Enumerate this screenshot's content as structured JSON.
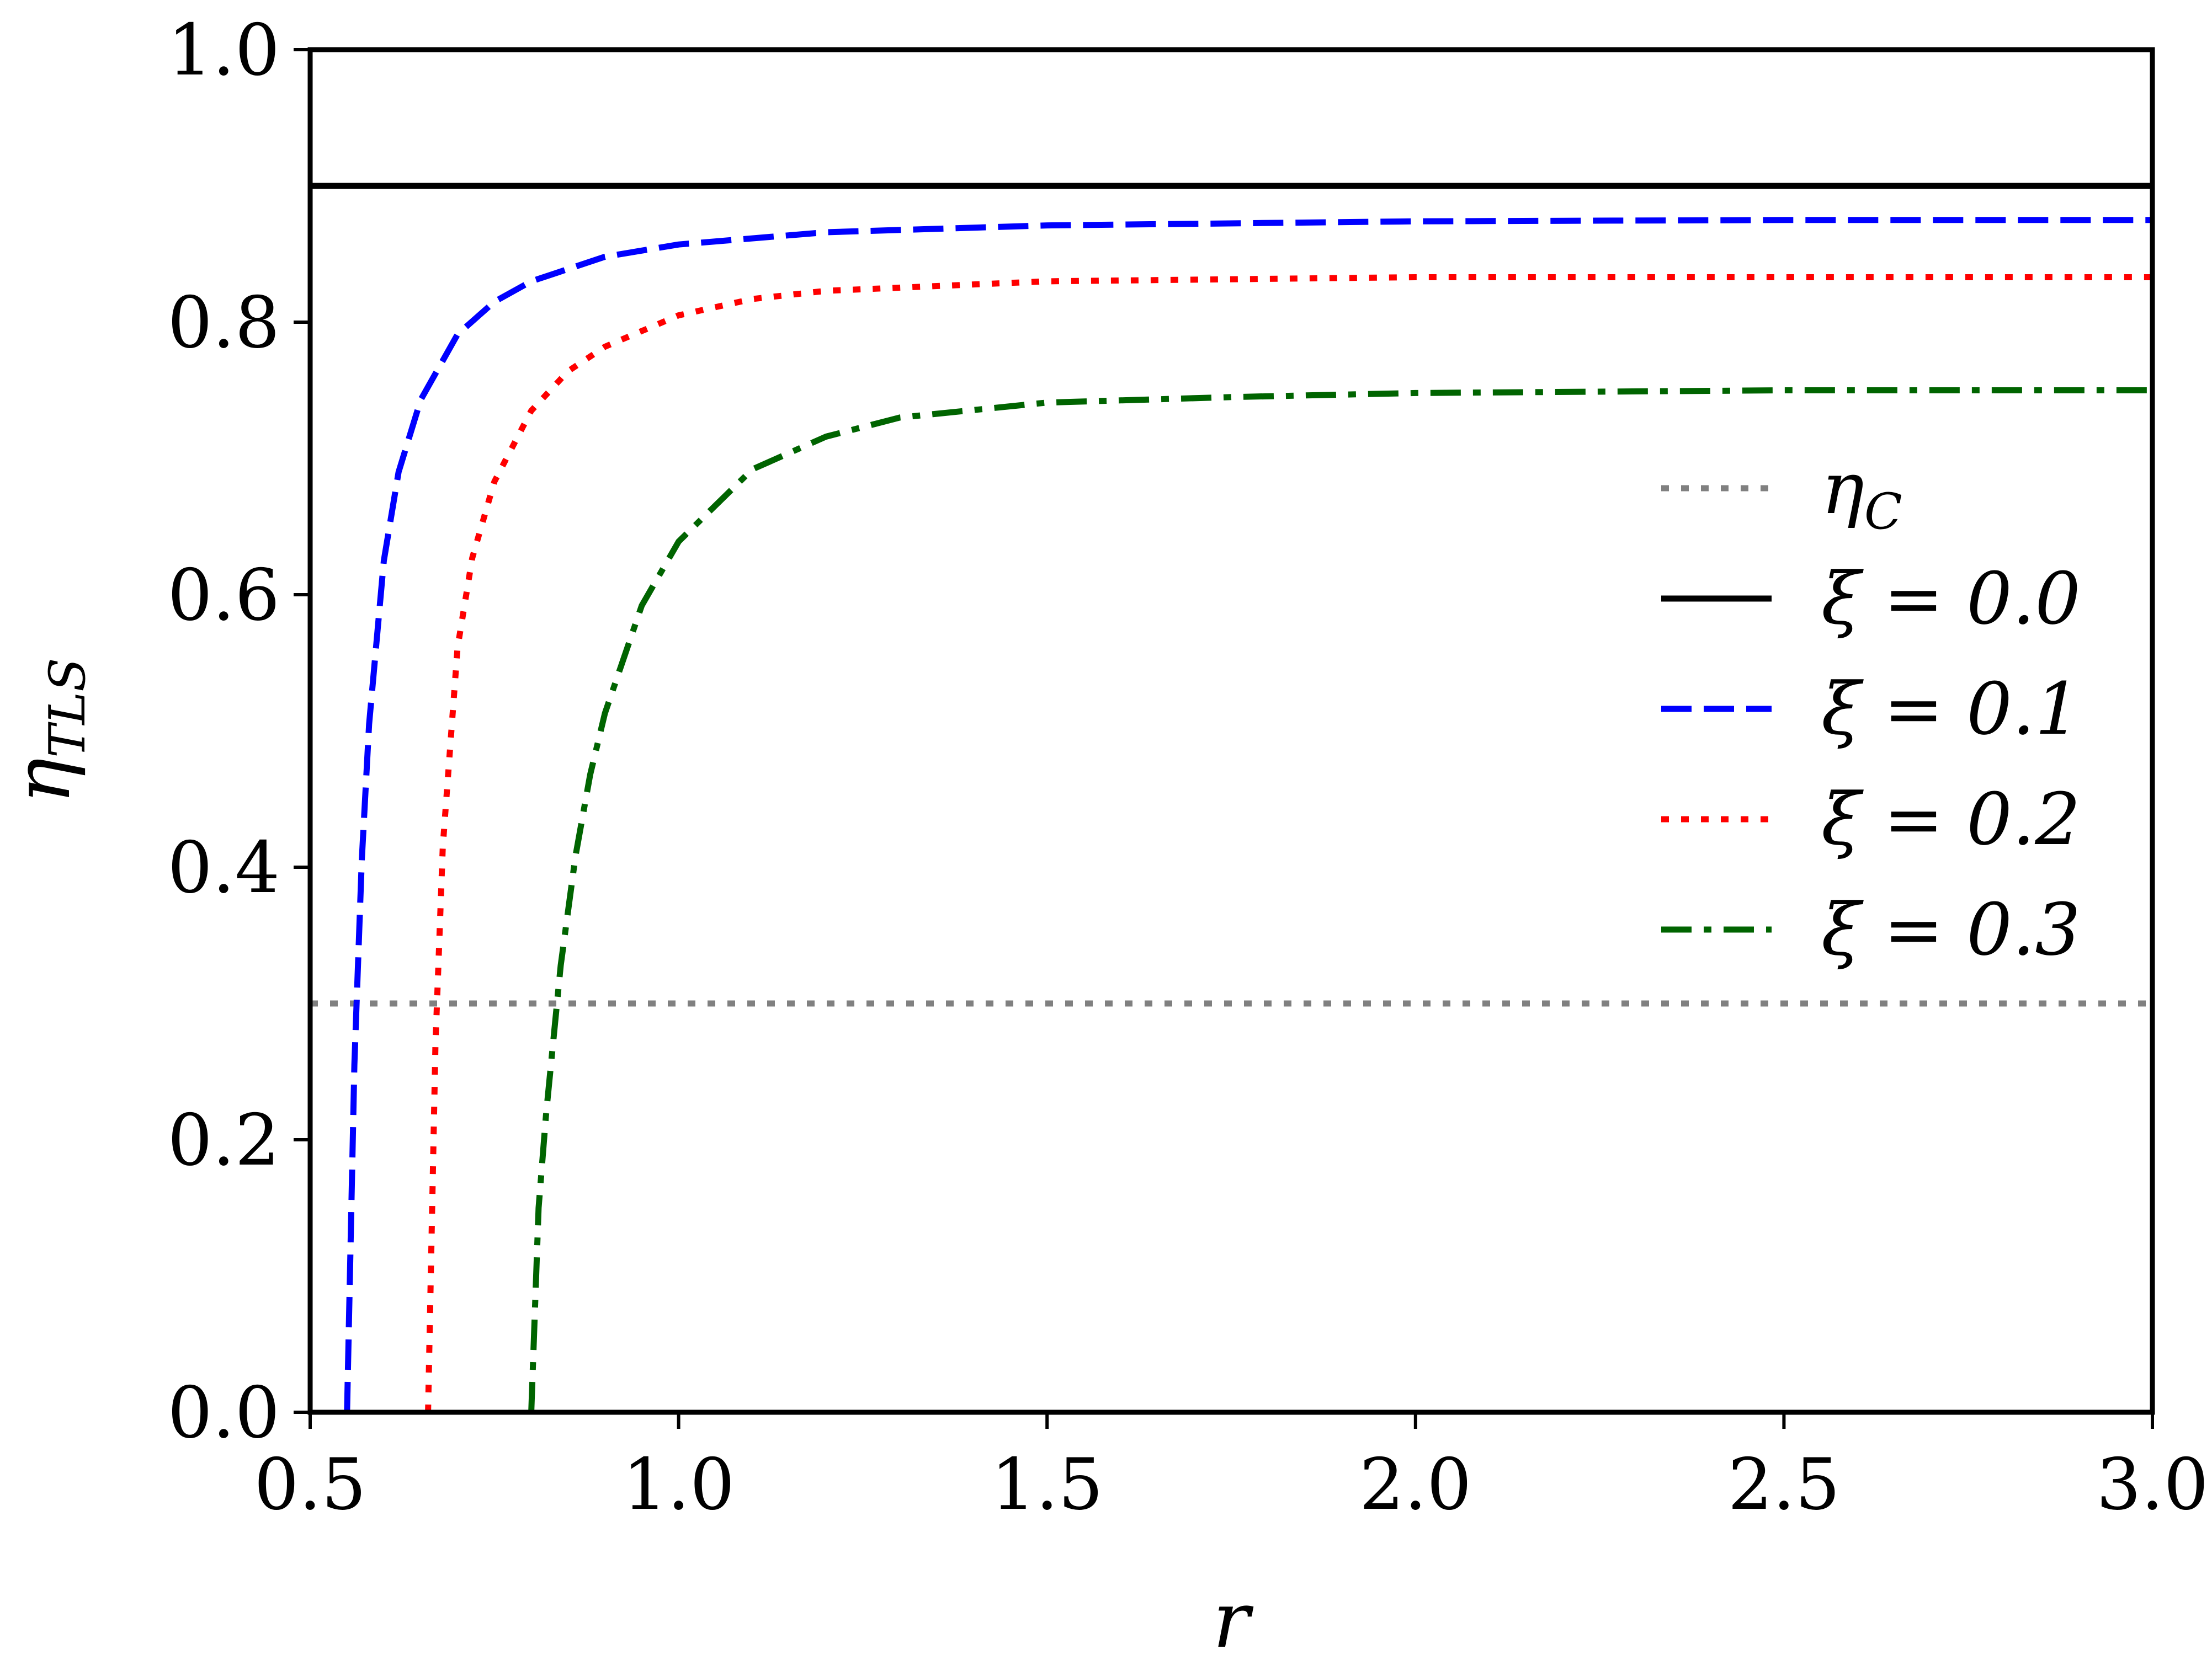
{
  "chart_data": {
    "type": "line",
    "xlabel": "r",
    "ylabel": "η",
    "ylabel_sub": "TLS",
    "xlim": [
      0.5,
      3.0
    ],
    "ylim": [
      0.0,
      1.0
    ],
    "xticks": [
      0.5,
      1.0,
      1.5,
      2.0,
      2.5,
      3.0
    ],
    "xtick_labels": [
      "0.5",
      "1.0",
      "1.5",
      "2.0",
      "2.5",
      "3.0"
    ],
    "yticks": [
      0.0,
      0.2,
      0.4,
      0.6,
      0.8,
      1.0
    ],
    "ytick_labels": [
      "0.0",
      "0.2",
      "0.4",
      "0.6",
      "0.8",
      "1.0"
    ],
    "grid": false,
    "legend_position": "right",
    "series": [
      {
        "name": "η_C",
        "legend_main": "η",
        "legend_sub": "C",
        "color": "#808080",
        "style": "dotted",
        "x": [
          0.5,
          3.0
        ],
        "y": [
          0.3,
          0.3
        ]
      },
      {
        "name": "ξ = 0.0",
        "legend_main": "ξ = 0.0",
        "legend_sub": "",
        "color": "#000000",
        "style": "solid",
        "x": [
          0.5,
          3.0
        ],
        "y": [
          0.9,
          0.9
        ]
      },
      {
        "name": "ξ = 0.1",
        "legend_main": "ξ = 0.1",
        "legend_sub": "",
        "color": "#0000ff",
        "style": "dashed",
        "x": [
          0.55,
          0.56,
          0.57,
          0.58,
          0.6,
          0.62,
          0.65,
          0.7,
          0.75,
          0.8,
          0.9,
          1.0,
          1.2,
          1.5,
          2.0,
          2.5,
          3.0
        ],
        "y": [
          0.0,
          0.255,
          0.405,
          0.505,
          0.625,
          0.69,
          0.743,
          0.791,
          0.815,
          0.83,
          0.848,
          0.857,
          0.866,
          0.871,
          0.874,
          0.875,
          0.875
        ]
      },
      {
        "name": "ξ = 0.2",
        "legend_main": "ξ = 0.2",
        "legend_sub": "",
        "color": "#ff0000",
        "style": "dotted",
        "x": [
          0.66,
          0.67,
          0.68,
          0.7,
          0.72,
          0.75,
          0.8,
          0.85,
          0.9,
          1.0,
          1.1,
          1.2,
          1.5,
          2.0,
          2.5,
          3.0
        ],
        "y": [
          0.0,
          0.27,
          0.415,
          0.561,
          0.627,
          0.683,
          0.735,
          0.764,
          0.782,
          0.805,
          0.817,
          0.823,
          0.83,
          0.833,
          0.833,
          0.833
        ]
      },
      {
        "name": "ξ = 0.3",
        "legend_main": "ξ = 0.3",
        "legend_sub": "",
        "color": "#006400",
        "style": "dashdot",
        "x": [
          0.8,
          0.81,
          0.82,
          0.84,
          0.86,
          0.88,
          0.9,
          0.95,
          1.0,
          1.1,
          1.2,
          1.3,
          1.5,
          1.75,
          2.0,
          2.5,
          3.0
        ],
        "y": [
          0.0,
          0.15,
          0.218,
          0.328,
          0.408,
          0.468,
          0.513,
          0.592,
          0.639,
          0.692,
          0.716,
          0.73,
          0.741,
          0.745,
          0.748,
          0.75,
          0.75
        ]
      }
    ]
  }
}
